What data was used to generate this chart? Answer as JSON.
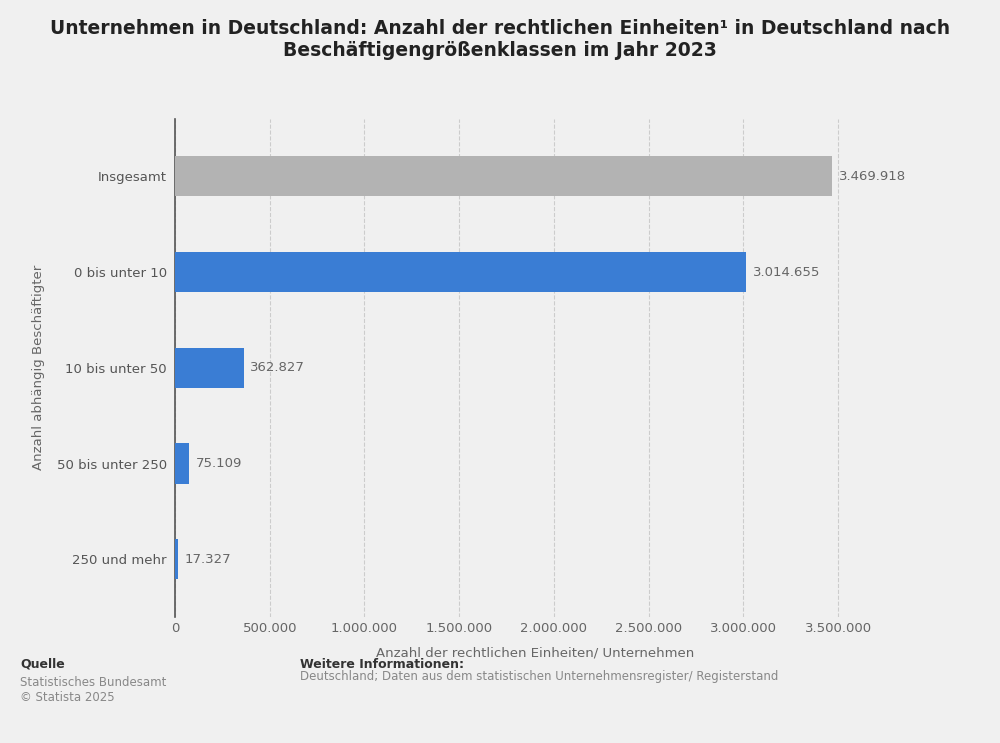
{
  "title_line1": "Unternehmen in Deutschland: Anzahl der rechtlichen Einheiten¹ in Deutschland nach",
  "title_line2": "Beschäftigengrößenklassen im Jahr 2023",
  "categories": [
    "250 und mehr",
    "50 bis unter 250",
    "10 bis unter 50",
    "0 bis unter 10",
    "Insgesamt"
  ],
  "values": [
    17327,
    75109,
    362827,
    3014655,
    3469918
  ],
  "bar_colors": [
    "#3a7dd4",
    "#3a7dd4",
    "#3a7dd4",
    "#3a7dd4",
    "#b3b3b3"
  ],
  "value_labels": [
    "17.327",
    "75.109",
    "362.827",
    "3.014.655",
    "3.469.918"
  ],
  "xlabel": "Anzahl der rechtlichen Einheiten/ Unternehmen",
  "ylabel": "Anzahl abhängig Beschäftigter",
  "xlim": [
    0,
    3800000
  ],
  "xticks": [
    0,
    500000,
    1000000,
    1500000,
    2000000,
    2500000,
    3000000,
    3500000
  ],
  "xtick_labels": [
    "0",
    "500.000",
    "1.000.000",
    "1.500.000",
    "2.000.000",
    "2.500.000",
    "3.000.000",
    "3.500.000"
  ],
  "background_color": "#f0f0f0",
  "plot_bg_color": "#f0f0f0",
  "grid_color": "#cccccc",
  "title_fontsize": 13.5,
  "label_fontsize": 9.5,
  "tick_fontsize": 9.5,
  "value_fontsize": 9.5,
  "ylabel_fontsize": 9.5,
  "source_text": "Quelle",
  "source_detail": "Statistisches Bundesamt\n© Statista 2025",
  "info_title": "Weitere Informationen:",
  "info_detail": "Deutschland; Daten aus dem statistischen Unternehmensregister/ Registerstand",
  "bar_height": 0.42
}
